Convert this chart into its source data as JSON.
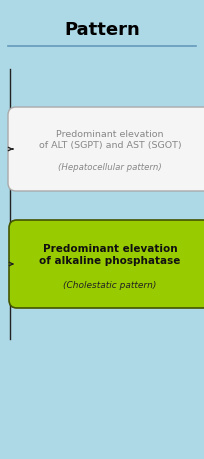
{
  "title": "Pattern",
  "title_fontsize": 13,
  "title_fontweight": "bold",
  "background_color": "#add8e6",
  "title_underline_color": "#6699bb",
  "box1_text_main": "Predominant elevation\nof ALT (SGPT) and AST (SGOT)",
  "box1_text_sub": "(Hepatocellular pattern)",
  "box1_fill": "#f5f5f5",
  "box1_edge": "#aaaaaa",
  "box1_text_color_main": "#888888",
  "box1_text_color_sub": "#888888",
  "box2_text_main": "Predominant elevation\nof alkaline phosphatase",
  "box2_text_sub": "(Cholestatic pattern)",
  "box2_fill": "#99cc00",
  "box2_edge": "#445500",
  "box2_text_color_main": "#111111",
  "box2_text_color_sub": "#222222",
  "line_color": "#222222"
}
